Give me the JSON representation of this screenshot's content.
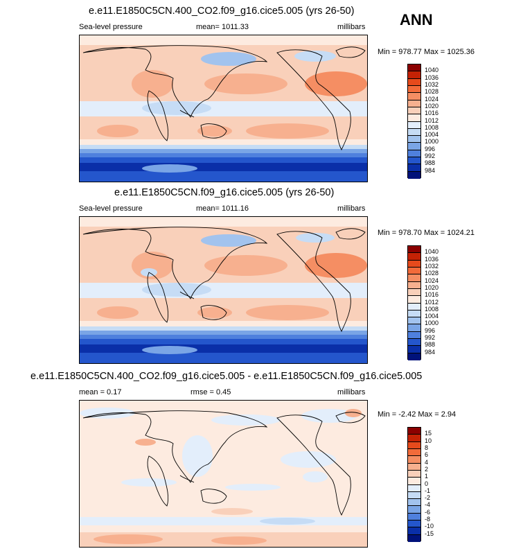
{
  "season": "ANN",
  "panels": [
    {
      "title": "e.e11.E1850C5CN.400_CO2.f09_g16.cice5.005 (yrs 26-50)",
      "left_label": "Sea-level pressure",
      "mid_label": "mean= 1011.33",
      "right_label": "millibars",
      "minmax": "Min = 978.77 Max = 1025.36"
    },
    {
      "title": "e.e11.E1850C5CN.f09_g16.cice5.005 (yrs 26-50)",
      "left_label": "Sea-level pressure",
      "mid_label": "mean= 1011.16",
      "right_label": "millibars",
      "minmax": "Min = 978.70 Max = 1024.21"
    },
    {
      "title": "e.e11.E1850C5CN.400_CO2.f09_g16.cice5.005 - e.e11.E1850C5CN.f09_g16.cice5.005",
      "left_label": "mean =   0.17",
      "mid_label": "rmse =   0.45",
      "right_label": "millibars",
      "minmax": "Min =  -2.42 Max =  2.94"
    }
  ],
  "chart_data": [
    {
      "type": "heatmap",
      "title": "e.e11.E1850C5CN.400_CO2.f09_g16.cice5.005 (yrs 26-50)",
      "variable": "Sea-level pressure",
      "units": "millibars",
      "mean": 1011.33,
      "min": 978.77,
      "max": 1025.36,
      "colorbar_levels": [
        "1040",
        "1036",
        "1032",
        "1028",
        "1024",
        "1020",
        "1016",
        "1012",
        "1008",
        "1004",
        "1000",
        "996",
        "992",
        "988",
        "984"
      ],
      "colorbar_colors": [
        "#8b0000",
        "#c42205",
        "#e64a1c",
        "#f26b3a",
        "#f58e63",
        "#f7b08f",
        "#f9d0ba",
        "#fdebe0",
        "#e3eefb",
        "#c6dcf5",
        "#a2c3ee",
        "#7aa5e6",
        "#4f80dd",
        "#2456cc",
        "#0a2fa8",
        "#00127a"
      ]
    },
    {
      "type": "heatmap",
      "title": "e.e11.E1850C5CN.f09_g16.cice5.005 (yrs 26-50)",
      "variable": "Sea-level pressure",
      "units": "millibars",
      "mean": 1011.16,
      "min": 978.7,
      "max": 1024.21,
      "colorbar_levels": [
        "1040",
        "1036",
        "1032",
        "1028",
        "1024",
        "1020",
        "1016",
        "1012",
        "1008",
        "1004",
        "1000",
        "996",
        "992",
        "988",
        "984"
      ],
      "colorbar_colors": [
        "#8b0000",
        "#c42205",
        "#e64a1c",
        "#f26b3a",
        "#f58e63",
        "#f7b08f",
        "#f9d0ba",
        "#fdebe0",
        "#e3eefb",
        "#c6dcf5",
        "#a2c3ee",
        "#7aa5e6",
        "#4f80dd",
        "#2456cc",
        "#0a2fa8",
        "#00127a"
      ]
    },
    {
      "type": "heatmap",
      "title": "e.e11.E1850C5CN.400_CO2.f09_g16.cice5.005 - e.e11.E1850C5CN.f09_g16.cice5.005",
      "units": "millibars",
      "mean": 0.17,
      "rmse": 0.45,
      "min": -2.42,
      "max": 2.94,
      "colorbar_levels": [
        "15",
        "10",
        "8",
        "6",
        "4",
        "2",
        "1",
        "0",
        "-1",
        "-2",
        "-4",
        "-6",
        "-8",
        "-10",
        "-15"
      ],
      "colorbar_colors": [
        "#8b0000",
        "#c42205",
        "#e64a1c",
        "#f26b3a",
        "#f58e63",
        "#f7b08f",
        "#f9d0ba",
        "#fdebe0",
        "#e3eefb",
        "#c6dcf5",
        "#a2c3ee",
        "#7aa5e6",
        "#4f80dd",
        "#2456cc",
        "#0a2fa8",
        "#00127a"
      ]
    }
  ]
}
